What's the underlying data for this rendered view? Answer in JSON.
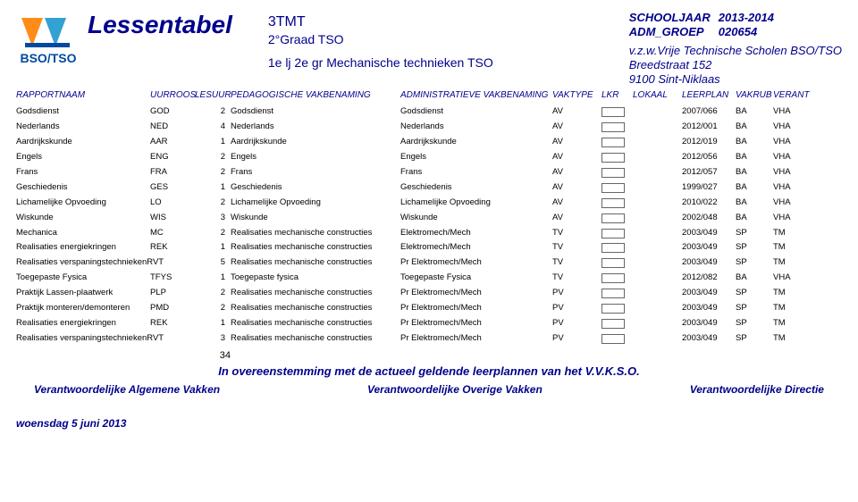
{
  "header": {
    "title": "Lessentabel",
    "code": "3TMT",
    "grade": "2°Graad TSO",
    "program": "1e lj 2e gr Mechanische technieken TSO",
    "year_label": "SCHOOLJAAR",
    "year_value": "2013-2014",
    "group_label": "ADM_GROEP",
    "group_value": "020654",
    "school": "v.z.w.Vrije Technische Scholen BSO/TSO",
    "street": "Breedstraat 152",
    "city": "9100       Sint-Niklaas"
  },
  "columns": {
    "rapportnaam": "RAPPORTNAAM",
    "uurroos": "UURROOS",
    "lesuur": "LESUUR",
    "pedagogische": "PEDAGOGISCHE VAKBENAMING",
    "administratieve": "ADMINISTRATIEVE VAKBENAMING",
    "vaktype": "VAKTYPE",
    "lkr": "LKR",
    "lokaal": "LOKAAL",
    "leerplan": "LEERPLAN",
    "vakrub": "VAKRUB",
    "verant": "VERANT"
  },
  "rows": [
    {
      "rap": "Godsdienst",
      "uur": "GOD",
      "les": "2",
      "ped": "Godsdienst",
      "adm": "Godsdienst",
      "vtype": "AV",
      "leer": "2007/066",
      "rub": "BA",
      "ver": "VHA"
    },
    {
      "rap": "Nederlands",
      "uur": "NED",
      "les": "4",
      "ped": "Nederlands",
      "adm": "Nederlands",
      "vtype": "AV",
      "leer": "2012/001",
      "rub": "BA",
      "ver": "VHA"
    },
    {
      "rap": "Aardrijkskunde",
      "uur": "AAR",
      "les": "1",
      "ped": "Aardrijkskunde",
      "adm": "Aardrijkskunde",
      "vtype": "AV",
      "leer": "2012/019",
      "rub": "BA",
      "ver": "VHA"
    },
    {
      "rap": "Engels",
      "uur": "ENG",
      "les": "2",
      "ped": "Engels",
      "adm": "Engels",
      "vtype": "AV",
      "leer": "2012/056",
      "rub": "BA",
      "ver": "VHA"
    },
    {
      "rap": "Frans",
      "uur": "FRA",
      "les": "2",
      "ped": "Frans",
      "adm": "Frans",
      "vtype": "AV",
      "leer": "2012/057",
      "rub": "BA",
      "ver": "VHA"
    },
    {
      "rap": "Geschiedenis",
      "uur": "GES",
      "les": "1",
      "ped": "Geschiedenis",
      "adm": "Geschiedenis",
      "vtype": "AV",
      "leer": "1999/027",
      "rub": "BA",
      "ver": "VHA"
    },
    {
      "rap": "Lichamelijke Opvoeding",
      "uur": "LO",
      "les": "2",
      "ped": "Lichamelijke Opvoeding",
      "adm": "Lichamelijke Opvoeding",
      "vtype": "AV",
      "leer": "2010/022",
      "rub": "BA",
      "ver": "VHA"
    },
    {
      "rap": "Wiskunde",
      "uur": "WIS",
      "les": "3",
      "ped": "Wiskunde",
      "adm": "Wiskunde",
      "vtype": "AV",
      "leer": "2002/048",
      "rub": "BA",
      "ver": "VHA"
    },
    {
      "rap": "Mechanica",
      "uur": "MC",
      "les": "2",
      "ped": "Realisaties mechanische constructies",
      "adm": "Elektromech/Mech",
      "vtype": "TV",
      "leer": "2003/049",
      "rub": "SP",
      "ver": "TM"
    },
    {
      "rap": "Realisaties energiekringen",
      "uur": "REK",
      "les": "1",
      "ped": "Realisaties mechanische constructies",
      "adm": "Elektromech/Mech",
      "vtype": "TV",
      "leer": "2003/049",
      "rub": "SP",
      "ver": "TM"
    },
    {
      "rap": "Realisaties verspaningstechniekenRVT",
      "uur": "",
      "les": "5",
      "ped": "Realisaties mechanische constructies",
      "adm": "Pr Elektromech/Mech",
      "vtype": "TV",
      "leer": "2003/049",
      "rub": "SP",
      "ver": "TM"
    },
    {
      "rap": "Toegepaste Fysica",
      "uur": "TFYS",
      "les": "1",
      "ped": "Toegepaste fysica",
      "adm": "Toegepaste Fysica",
      "vtype": "TV",
      "leer": "2012/082",
      "rub": "BA",
      "ver": "VHA"
    },
    {
      "rap": "Praktijk Lassen-plaatwerk",
      "uur": "PLP",
      "les": "2",
      "ped": "Realisaties mechanische constructies",
      "adm": "Pr Elektromech/Mech",
      "vtype": "PV",
      "leer": "2003/049",
      "rub": "SP",
      "ver": "TM"
    },
    {
      "rap": "Praktijk monteren/demonteren",
      "uur": "PMD",
      "les": "2",
      "ped": "Realisaties mechanische constructies",
      "adm": "Pr Elektromech/Mech",
      "vtype": "PV",
      "leer": "2003/049",
      "rub": "SP",
      "ver": "TM"
    },
    {
      "rap": "Realisaties energiekringen",
      "uur": "REK",
      "les": "1",
      "ped": "Realisaties mechanische constructies",
      "adm": "Pr Elektromech/Mech",
      "vtype": "PV",
      "leer": "2003/049",
      "rub": "SP",
      "ver": "TM"
    },
    {
      "rap": "Realisaties verspaningstechniekenRVT",
      "uur": "",
      "les": "3",
      "ped": "Realisaties mechanische constructies",
      "adm": "Pr Elektromech/Mech",
      "vtype": "PV",
      "leer": "2003/049",
      "rub": "SP",
      "ver": "TM"
    }
  ],
  "total_hours": "34",
  "footnote": "In overeenstemming met de actueel geldende leerplannen van het V.V.K.S.O.",
  "footer": {
    "av": "Verantwoordelijke Algemene Vakken",
    "ov": "Verantwoordelijke Overige Vakken",
    "dir": "Verantwoordelijke Directie"
  },
  "date": "woensdag 5 juni 2013"
}
